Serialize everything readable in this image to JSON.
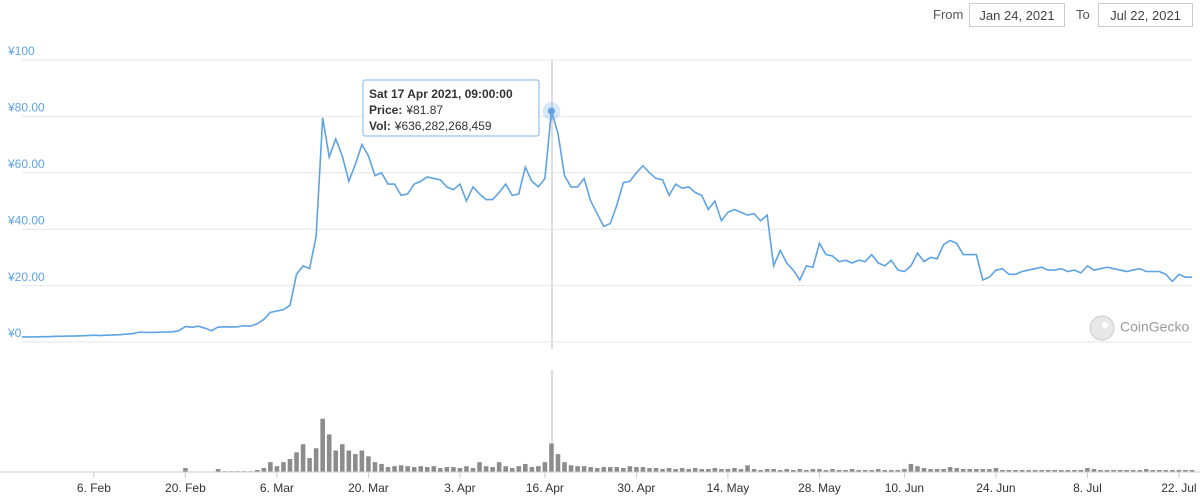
{
  "range_selector": {
    "from_label": "From",
    "from": "Jan 24, 2021",
    "to_label": "To",
    "to": "Jul 22, 2021"
  },
  "watermark": "CoinGecko",
  "chart_data": [
    {
      "type": "line",
      "color": "#5ea3e4",
      "grid": true,
      "ylim": [
        0,
        100
      ],
      "yticks": [
        {
          "value": 0,
          "label": "¥0"
        },
        {
          "value": 20,
          "label": "¥20.00"
        },
        {
          "value": 40,
          "label": "¥40.00"
        },
        {
          "value": 60,
          "label": "¥60.00"
        },
        {
          "value": 80,
          "label": "¥80.00"
        },
        {
          "value": 100,
          "label": "¥100"
        }
      ],
      "tooltip": {
        "title": "Sat 17 Apr 2021, 09:00:00",
        "price_label": "Price:",
        "price": "¥81.87",
        "vol_label": "Vol:",
        "vol": "¥636,282,268,459"
      },
      "categories": [
        null,
        null,
        null,
        null,
        null,
        null,
        null,
        null,
        null,
        null,
        null,
        "6. Feb",
        null,
        null,
        null,
        null,
        null,
        null,
        null,
        null,
        null,
        null,
        null,
        null,
        null,
        "20. Feb",
        null,
        null,
        null,
        null,
        null,
        null,
        null,
        null,
        null,
        null,
        null,
        null,
        null,
        "6. Mar",
        null,
        null,
        null,
        null,
        null,
        null,
        null,
        null,
        null,
        null,
        null,
        null,
        null,
        "20. Mar",
        null,
        null,
        null,
        null,
        null,
        null,
        null,
        null,
        null,
        null,
        null,
        null,
        null,
        "3. Apr",
        null,
        null,
        null,
        null,
        null,
        null,
        null,
        null,
        null,
        null,
        null,
        null,
        "16. Apr",
        null,
        null,
        null,
        null,
        null,
        null,
        null,
        null,
        null,
        null,
        null,
        null,
        null,
        "30. Apr",
        null,
        null,
        null,
        null,
        null,
        null,
        null,
        null,
        null,
        null,
        null,
        null,
        null,
        "14. May",
        null,
        null,
        null,
        null,
        null,
        null,
        null,
        null,
        null,
        null,
        null,
        null,
        null,
        "28. May",
        null,
        null,
        null,
        null,
        null,
        null,
        null,
        null,
        null,
        null,
        null,
        null,
        "10. Jun",
        null,
        null,
        null,
        null,
        null,
        null,
        null,
        null,
        null,
        null,
        null,
        null,
        null,
        "24. Jun",
        null,
        null,
        null,
        null,
        null,
        null,
        null,
        null,
        null,
        null,
        null,
        null,
        null,
        "8. Jul",
        null,
        null,
        null,
        null,
        null,
        null,
        null,
        null,
        null,
        null,
        null,
        null,
        null,
        "22. Jul",
        null,
        null
      ],
      "values": [
        1.8,
        1.8,
        1.8,
        1.9,
        1.9,
        2.0,
        2.0,
        2.1,
        2.1,
        2.2,
        2.3,
        2.4,
        2.3,
        2.4,
        2.5,
        2.6,
        2.8,
        3.0,
        3.5,
        3.4,
        3.4,
        3.5,
        3.5,
        3.6,
        4.0,
        5.5,
        5.2,
        5.6,
        4.9,
        4.0,
        5.3,
        5.4,
        5.3,
        5.4,
        5.8,
        5.6,
        6.5,
        8.0,
        10.5,
        11,
        11.5,
        13,
        24,
        27,
        26,
        37.5,
        79.5,
        65.6,
        72,
        66,
        57,
        63,
        70,
        66,
        59,
        60,
        56,
        56,
        52,
        52.5,
        56,
        57,
        58.5,
        58,
        57.5,
        55,
        54,
        56,
        50,
        55,
        52.5,
        50.5,
        50.5,
        53,
        56,
        52,
        52.5,
        62,
        57,
        55,
        58,
        81.87,
        74,
        59,
        55,
        55,
        58,
        50,
        45.5,
        41,
        42,
        48.5,
        56.5,
        57,
        60,
        62.5,
        60,
        58,
        57.5,
        52,
        56,
        54.5,
        55,
        53,
        52,
        47,
        50,
        43,
        46,
        47,
        46,
        45,
        45.5,
        43,
        45,
        27,
        32.5,
        28,
        25.5,
        22,
        27,
        26.5,
        35,
        31,
        30.5,
        28.5,
        29,
        28,
        29,
        28.5,
        31,
        28,
        27,
        29,
        25.5,
        25,
        27,
        31.5,
        28.5,
        30,
        29.5,
        34.5,
        36,
        35,
        31,
        31,
        31,
        22,
        23,
        25.5,
        26,
        24,
        24,
        25,
        25.5,
        26,
        26.5,
        25.5,
        25.5,
        26,
        25,
        25.5,
        24.5,
        27,
        25.5,
        26,
        26.5,
        26,
        25.5,
        25,
        25.5,
        26,
        25,
        25,
        25,
        24,
        21.5,
        24,
        23,
        23
      ]
    },
    {
      "type": "bar",
      "color": "#8c8c8c",
      "ylim": [
        0,
        2500000000000.0
      ],
      "values": [
        7000000000.0,
        7000000000.0,
        7000000000.0,
        7000000000.0,
        7000000000.0,
        7000000000.0,
        7000000000.0,
        7000000000.0,
        7000000000.0,
        7000000000.0,
        7000000000.0,
        7000000000.0,
        7000000000.0,
        7000000000.0,
        7000000000.0,
        7000000000.0,
        7000000000.0,
        7000000000.0,
        7000000000.0,
        7000000000.0,
        7000000000.0,
        7000000000.0,
        7000000000.0,
        7000000000.0,
        7000000000.0,
        88000000000.0,
        11000000000.0,
        11000000000.0,
        11000000000.0,
        11000000000.0,
        66000000000.0,
        18000000000.0,
        18000000000.0,
        18000000000.0,
        18000000000.0,
        18000000000.0,
        44000000000.0,
        88000000000.0,
        220000000000.0,
        130000000000.0,
        220000000000.0,
        290000000000.0,
        440000000000.0,
        620000000000.0,
        310000000000.0,
        530000000000.0,
        1190000000000.0,
        840000000000.0,
        480000000000.0,
        620000000000.0,
        480000000000.0,
        400000000000.0,
        480000000000.0,
        350000000000.0,
        220000000000.0,
        180000000000.0,
        110000000000.0,
        130000000000.0,
        150000000000.0,
        130000000000.0,
        110000000000.0,
        130000000000.0,
        110000000000.0,
        130000000000.0,
        88000000000.0,
        110000000000.0,
        110000000000.0,
        88000000000.0,
        130000000000.0,
        88000000000.0,
        220000000000.0,
        130000000000.0,
        110000000000.0,
        220000000000.0,
        130000000000.0,
        88000000000.0,
        130000000000.0,
        180000000000.0,
        110000000000.0,
        130000000000.0,
        220000000000.0,
        636282268459,
        400000000000.0,
        220000000000.0,
        150000000000.0,
        130000000000.0,
        130000000000.0,
        110000000000.0,
        88000000000.0,
        110000000000.0,
        110000000000.0,
        110000000000.0,
        88000000000.0,
        130000000000.0,
        110000000000.0,
        110000000000.0,
        88000000000.0,
        88000000000.0,
        66000000000.0,
        88000000000.0,
        66000000000.0,
        88000000000.0,
        66000000000.0,
        88000000000.0,
        66000000000.0,
        66000000000.0,
        88000000000.0,
        66000000000.0,
        66000000000.0,
        88000000000.0,
        66000000000.0,
        150000000000.0,
        66000000000.0,
        44000000000.0,
        66000000000.0,
        66000000000.0,
        44000000000.0,
        66000000000.0,
        44000000000.0,
        66000000000.0,
        44000000000.0,
        66000000000.0,
        66000000000.0,
        44000000000.0,
        66000000000.0,
        44000000000.0,
        44000000000.0,
        66000000000.0,
        44000000000.0,
        44000000000.0,
        44000000000.0,
        66000000000.0,
        44000000000.0,
        44000000000.0,
        44000000000.0,
        66000000000.0,
        180000000000.0,
        130000000000.0,
        88000000000.0,
        66000000000.0,
        66000000000.0,
        66000000000.0,
        110000000000.0,
        88000000000.0,
        66000000000.0,
        66000000000.0,
        66000000000.0,
        66000000000.0,
        66000000000.0,
        88000000000.0,
        44000000000.0,
        44000000000.0,
        44000000000.0,
        44000000000.0,
        44000000000.0,
        44000000000.0,
        44000000000.0,
        44000000000.0,
        44000000000.0,
        44000000000.0,
        44000000000.0,
        44000000000.0,
        44000000000.0,
        88000000000.0,
        66000000000.0,
        44000000000.0,
        44000000000.0,
        44000000000.0,
        44000000000.0,
        44000000000.0,
        44000000000.0,
        44000000000.0,
        66000000000.0,
        44000000000.0,
        44000000000.0,
        44000000000.0,
        44000000000.0,
        44000000000.0,
        44000000000.0,
        44000000000.0
      ]
    }
  ]
}
